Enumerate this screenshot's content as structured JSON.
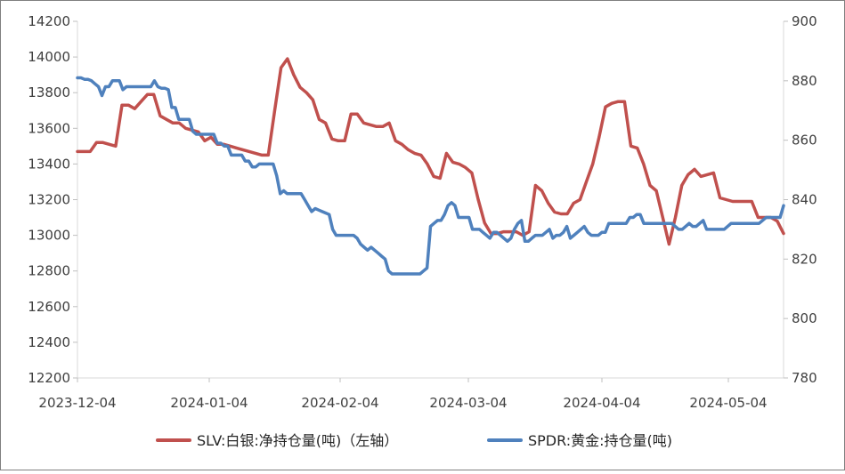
{
  "chart_data": {
    "type": "line",
    "title": "",
    "x_labels": [
      "2023-12-04",
      "2024-01-04",
      "2024-02-04",
      "2024-03-04",
      "2024-04-04",
      "2024-05-04"
    ],
    "left_axis": {
      "min": 12200,
      "max": 14200,
      "ticks": [
        "12200",
        "12400",
        "12600",
        "12800",
        "13000",
        "13200",
        "13400",
        "13600",
        "13800",
        "14000",
        "14200"
      ]
    },
    "right_axis": {
      "min": 780,
      "max": 900,
      "ticks": [
        "780",
        "800",
        "820",
        "840",
        "860",
        "880",
        "900"
      ]
    },
    "series": [
      {
        "name": "SLV:白银:净持仓量(吨)（左轴）",
        "axis": "left",
        "color": "#c0504d",
        "values": [
          13470,
          13470,
          13470,
          13520,
          13520,
          13510,
          13500,
          13730,
          13730,
          13710,
          13750,
          13790,
          13790,
          13670,
          13650,
          13630,
          13630,
          13600,
          13590,
          13580,
          13530,
          13550,
          13510,
          13510,
          13500,
          13490,
          13480,
          13470,
          13460,
          13450,
          13450,
          13700,
          13940,
          13990,
          13900,
          13830,
          13800,
          13760,
          13650,
          13630,
          13540,
          13530,
          13530,
          13680,
          13680,
          13630,
          13620,
          13610,
          13610,
          13630,
          13530,
          13510,
          13480,
          13460,
          13450,
          13400,
          13330,
          13320,
          13460,
          13410,
          13400,
          13380,
          13350,
          13200,
          13070,
          13010,
          13010,
          13020,
          13020,
          13020,
          13000,
          13020,
          13280,
          13250,
          13180,
          13130,
          13120,
          13120,
          13180,
          13200,
          13300,
          13400,
          13550,
          13720,
          13740,
          13750,
          13750,
          13500,
          13490,
          13400,
          13280,
          13250,
          13100,
          12950,
          13100,
          13280,
          13340,
          13370,
          13330,
          13340,
          13350,
          13210,
          13200,
          13190,
          13190,
          13190,
          13190,
          13100,
          13100,
          13100,
          13080,
          13010
        ]
      },
      {
        "name": "SPDR:黄金:持仓量(吨)",
        "axis": "right",
        "color": "#4f81bd",
        "values": [
          881,
          881,
          880.5,
          880.5,
          880,
          879,
          878,
          875,
          878,
          878,
          880,
          880,
          880,
          877,
          878,
          878,
          878,
          878,
          878,
          878,
          878,
          878,
          880,
          878,
          877.5,
          877.5,
          877,
          871,
          871,
          867,
          867,
          867,
          867,
          863,
          862,
          862,
          862,
          862,
          862,
          862,
          859,
          859,
          858,
          858,
          855,
          855,
          855,
          855,
          853,
          853,
          851,
          851,
          852,
          852,
          852,
          852,
          852,
          848,
          842,
          843,
          842,
          842,
          842,
          842,
          842,
          840,
          838,
          836,
          837,
          836.5,
          836,
          835.5,
          835,
          830,
          828,
          828,
          828,
          828,
          828,
          828,
          827,
          825,
          824,
          823,
          824,
          823,
          822,
          821,
          820,
          816,
          815,
          815,
          815,
          815,
          815,
          815,
          815,
          815,
          815,
          816,
          817,
          831,
          832,
          833,
          833,
          835,
          838,
          839,
          838,
          834,
          834,
          834,
          834,
          830,
          830,
          830,
          829,
          828,
          827,
          829,
          829,
          828,
          827,
          826,
          827,
          830,
          832,
          833,
          826,
          826,
          827,
          828,
          828,
          828,
          829,
          830,
          827,
          828,
          828,
          829,
          831,
          827,
          828,
          829,
          830,
          831,
          829,
          828,
          828,
          828,
          829,
          829,
          832,
          832,
          832,
          832,
          832,
          832,
          834,
          834,
          835,
          835,
          832,
          832,
          832,
          832,
          832,
          832,
          832,
          832,
          832,
          831,
          830,
          830,
          831,
          832,
          831,
          831,
          832,
          833,
          830,
          830,
          830,
          830,
          830,
          830,
          831,
          832,
          832,
          832,
          832,
          832,
          832,
          832,
          832,
          832,
          833,
          834,
          834,
          834,
          834,
          834,
          838
        ]
      }
    ],
    "legend_position": "bottom-center",
    "grid": false
  }
}
